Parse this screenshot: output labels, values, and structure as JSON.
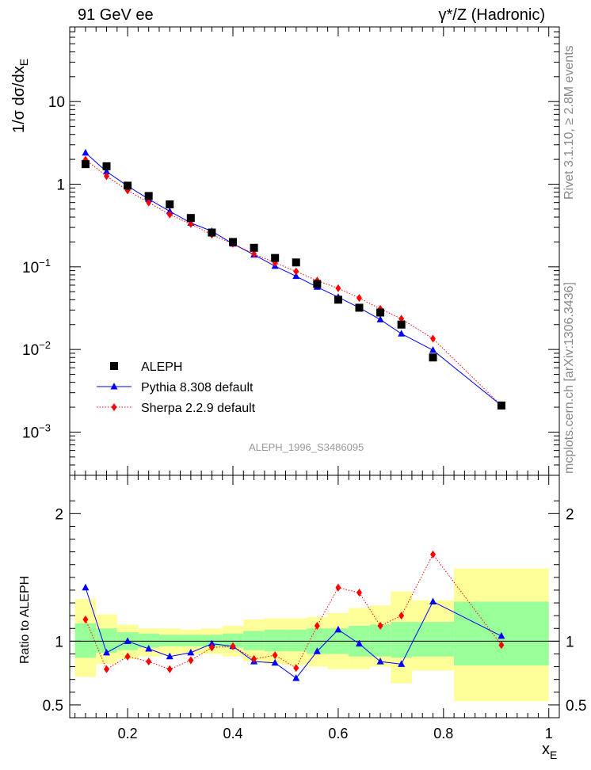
{
  "header": {
    "left": "91 GeV ee",
    "right": "γ*/Z (Hadronic)"
  },
  "side_labels": {
    "rivet": "Rivet 3.1.10, ≥ 2.8M events",
    "mcplots": "mcplots.cern.ch [arXiv:1306.3436]"
  },
  "analysis_label": "ALEPH_1996_S3486095",
  "colors": {
    "data": "#000000",
    "pythia": "#0000ff",
    "sherpa": "#ff0000",
    "band_inner": "#99ff99",
    "band_outer": "#ffff99",
    "side_text": "#888888"
  },
  "chart_data": [
    {
      "type": "line",
      "panel": "main",
      "ylabel": "1/σ dσ/dx_E",
      "yscale": "log",
      "xlim": [
        0.09,
        1.02
      ],
      "ylim": [
        0.0003,
        80
      ],
      "ytick_labels": [
        {
          "v": 10,
          "base": "10",
          "exp": ""
        },
        {
          "v": 1,
          "base": "1",
          "exp": ""
        },
        {
          "v": 0.1,
          "base": "10",
          "exp": "−1"
        },
        {
          "v": 0.01,
          "base": "10",
          "exp": "−2"
        },
        {
          "v": 0.001,
          "base": "10",
          "exp": "−3"
        }
      ],
      "legend": {
        "placement": "lower-left",
        "entries": [
          "ALEPH",
          "Pythia 8.308 default",
          "Sherpa 2.2.9 default"
        ]
      },
      "series": [
        {
          "name": "ALEPH",
          "marker": "square",
          "x": [
            0.12,
            0.16,
            0.2,
            0.24,
            0.28,
            0.32,
            0.36,
            0.4,
            0.44,
            0.48,
            0.52,
            0.56,
            0.6,
            0.64,
            0.68,
            0.72,
            0.78,
            0.91
          ],
          "y": [
            1.75,
            1.65,
            0.96,
            0.72,
            0.57,
            0.39,
            0.26,
            0.2,
            0.17,
            0.128,
            0.113,
            0.062,
            0.04,
            0.032,
            0.028,
            0.02,
            0.008,
            0.0021
          ]
        },
        {
          "name": "Pythia 8.308 default",
          "marker": "triangle",
          "x": [
            0.12,
            0.16,
            0.2,
            0.24,
            0.28,
            0.32,
            0.36,
            0.4,
            0.44,
            0.48,
            0.52,
            0.56,
            0.6,
            0.64,
            0.68,
            0.72,
            0.78,
            0.91
          ],
          "y": [
            2.4,
            1.42,
            0.95,
            0.66,
            0.47,
            0.34,
            0.27,
            0.19,
            0.14,
            0.102,
            0.077,
            0.057,
            0.043,
            0.032,
            0.023,
            0.0155,
            0.0098,
            0.0021
          ]
        },
        {
          "name": "Sherpa 2.2.9 default",
          "marker": "diamond",
          "x": [
            0.12,
            0.16,
            0.2,
            0.24,
            0.28,
            0.32,
            0.36,
            0.4,
            0.44,
            0.48,
            0.52,
            0.56,
            0.6,
            0.64,
            0.68,
            0.72,
            0.78,
            0.91
          ],
          "y": [
            1.98,
            1.25,
            0.84,
            0.6,
            0.43,
            0.33,
            0.245,
            0.19,
            0.143,
            0.112,
            0.088,
            0.068,
            0.055,
            0.042,
            0.031,
            0.0235,
            0.0135,
            0.0021
          ]
        }
      ]
    },
    {
      "type": "line",
      "panel": "ratio",
      "ylabel": "Ratio to ALEPH",
      "xlabel": "x_E",
      "ylim": [
        0.4,
        2.3
      ],
      "xlim": [
        0.09,
        1.02
      ],
      "xticks": [
        0.2,
        0.4,
        0.6,
        0.8,
        1
      ],
      "xtick_labels": [
        "0.2",
        "0.4",
        "0.6",
        "0.8",
        "1"
      ],
      "yticks": [
        0.5,
        1,
        2
      ],
      "ytick_labels": [
        "0.5",
        "1",
        "2"
      ],
      "bands": {
        "edges": [
          0.1,
          0.14,
          0.18,
          0.22,
          0.26,
          0.3,
          0.34,
          0.38,
          0.42,
          0.46,
          0.5,
          0.54,
          0.58,
          0.62,
          0.66,
          0.7,
          0.74,
          0.82,
          1.0
        ],
        "inner_low": [
          0.87,
          0.91,
          0.93,
          0.95,
          0.96,
          0.96,
          0.96,
          0.95,
          0.93,
          0.92,
          0.92,
          0.9,
          0.9,
          0.88,
          0.88,
          0.87,
          0.88,
          0.81
        ],
        "inner_high": [
          1.14,
          1.1,
          1.07,
          1.06,
          1.05,
          1.05,
          1.05,
          1.06,
          1.08,
          1.09,
          1.09,
          1.1,
          1.1,
          1.12,
          1.13,
          1.15,
          1.15,
          1.31
        ],
        "outer_low": [
          0.72,
          0.82,
          0.86,
          0.88,
          0.89,
          0.9,
          0.9,
          0.88,
          0.84,
          0.82,
          0.81,
          0.8,
          0.78,
          0.78,
          0.8,
          0.67,
          0.77,
          0.53
        ],
        "outer_high": [
          1.33,
          1.21,
          1.13,
          1.1,
          1.1,
          1.09,
          1.1,
          1.12,
          1.17,
          1.18,
          1.18,
          1.19,
          1.22,
          1.26,
          1.28,
          1.39,
          1.32,
          1.57
        ]
      },
      "series": [
        {
          "name": "Pythia 8.308 default",
          "x": [
            0.12,
            0.16,
            0.2,
            0.24,
            0.28,
            0.32,
            0.36,
            0.4,
            0.44,
            0.48,
            0.52,
            0.56,
            0.6,
            0.64,
            0.68,
            0.72,
            0.78,
            0.91
          ],
          "y": [
            1.42,
            0.91,
            1.0,
            0.94,
            0.88,
            0.91,
            0.98,
            0.96,
            0.84,
            0.83,
            0.71,
            0.92,
            1.09,
            0.98,
            0.84,
            0.82,
            1.31,
            1.04
          ]
        },
        {
          "name": "Sherpa 2.2.9 default",
          "x": [
            0.12,
            0.16,
            0.2,
            0.24,
            0.28,
            0.32,
            0.36,
            0.4,
            0.44,
            0.48,
            0.52,
            0.56,
            0.6,
            0.64,
            0.68,
            0.72,
            0.78,
            0.91
          ],
          "y": [
            1.17,
            0.78,
            0.88,
            0.84,
            0.78,
            0.85,
            0.95,
            0.96,
            0.86,
            0.89,
            0.79,
            1.12,
            1.42,
            1.38,
            1.12,
            1.2,
            1.68,
            0.97
          ]
        }
      ]
    }
  ]
}
